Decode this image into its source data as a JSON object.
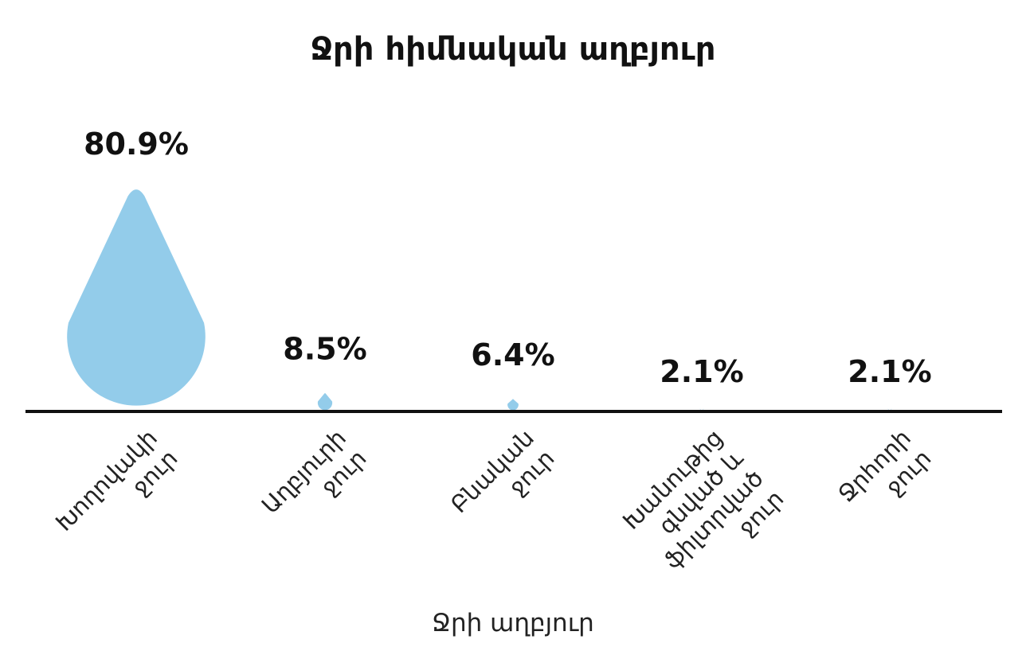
{
  "chart_data": {
    "type": "bar",
    "title": "Ջրի հիմնական աղբյուր",
    "xlabel": "Ջրի աղբյուր",
    "ylabel": "",
    "categories": [
      [
        "Խողովակի",
        "ջուր"
      ],
      [
        "Աղբյուրի",
        "ջուր"
      ],
      [
        "Բնական",
        "ջուր"
      ],
      [
        "Խանութից",
        "գնված և",
        "ֆիլտրված",
        "ջուր"
      ],
      [
        "Ջրհորի",
        "ջուր"
      ]
    ],
    "values": [
      80.9,
      8.5,
      6.4,
      2.1,
      2.1
    ],
    "value_labels": [
      "80.9%",
      "8.5%",
      "6.4%",
      "2.1%",
      "2.1%"
    ],
    "unit": "%",
    "ylim": [
      0,
      100
    ],
    "grid": false,
    "legend": "none",
    "mark_shape": "water-drop",
    "colors": {
      "mark": "#93CCEA",
      "axis": "#111111",
      "text": "#111111"
    }
  }
}
